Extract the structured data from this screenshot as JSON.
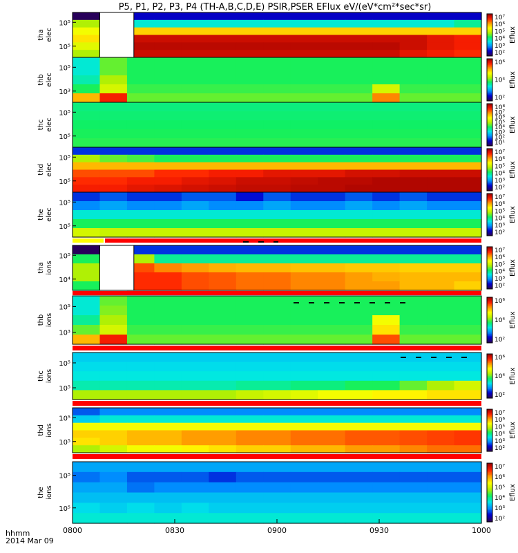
{
  "title": "P5, P1, P2, P3, P4 (TH-A,B,C,D,E) PSIR,PSER EFlux eV/(eV*cm²*sec*sr)",
  "colorbar_label": "Eflux",
  "xaxis": {
    "ticks": [
      "0800",
      "0830",
      "0900",
      "0930",
      "1000"
    ],
    "label": "hhmm",
    "date": "2014 Mar 09"
  },
  "colors": {
    "scale": [
      "#28005a",
      "#0000d0",
      "#0090ff",
      "#00e8e8",
      "#10f060",
      "#b8f000",
      "#ffff00",
      "#ffa000",
      "#ff2000",
      "#a00000"
    ],
    "flag_red": "#ff0000",
    "flag_black": "#000000",
    "gap": "#ffffff"
  },
  "chart_data": {
    "type": "heatmap",
    "time_range": [
      "0800",
      "1000"
    ],
    "value_scale": "log",
    "panels": [
      {
        "label": [
          "tha",
          "elec"
        ],
        "yticks": [
          "10⁵",
          "10⁵"
        ],
        "cbar_ticks": [
          "10⁷",
          "10⁶",
          "10⁵",
          "10⁴",
          "10³",
          "10²"
        ],
        "gap_range": [
          "0808",
          "0818"
        ],
        "rows": [
          [
            0.0,
            null,
            0.1,
            0.1,
            0.1,
            0.1,
            0.1,
            0.1,
            0.1,
            0.1,
            0.1,
            0.1,
            0.1,
            0.1,
            0.1
          ],
          [
            0.55,
            null,
            0.35,
            0.35,
            0.35,
            0.35,
            0.35,
            0.35,
            0.35,
            0.35,
            0.35,
            0.35,
            0.35,
            0.35,
            0.4
          ],
          [
            0.65,
            null,
            0.72,
            0.72,
            0.72,
            0.72,
            0.72,
            0.72,
            0.72,
            0.72,
            0.72,
            0.72,
            0.72,
            0.72,
            0.72
          ],
          [
            0.7,
            null,
            0.95,
            0.95,
            0.95,
            0.95,
            0.95,
            0.95,
            0.95,
            0.95,
            0.95,
            0.95,
            0.95,
            0.92,
            0.9
          ],
          [
            0.62,
            null,
            0.97,
            0.97,
            0.97,
            0.97,
            0.97,
            0.97,
            0.97,
            0.97,
            0.97,
            0.97,
            0.95,
            0.92,
            0.9
          ],
          [
            0.55,
            null,
            0.95,
            0.95,
            0.95,
            0.95,
            0.95,
            0.95,
            0.95,
            0.95,
            0.95,
            0.95,
            0.92,
            0.9,
            0.88
          ]
        ]
      },
      {
        "label": [
          "thb",
          "elec"
        ],
        "yticks": [
          "10⁵",
          "10³"
        ],
        "cbar_ticks": [
          "10⁶",
          "10⁴",
          "10²"
        ],
        "rows": [
          [
            0.35,
            0.5,
            0.45,
            0.45,
            0.45,
            0.45,
            0.45,
            0.45,
            0.45,
            0.45,
            0.45,
            0.45,
            0.45,
            0.45,
            0.45
          ],
          [
            0.35,
            0.5,
            0.45,
            0.45,
            0.45,
            0.45,
            0.45,
            0.45,
            0.45,
            0.45,
            0.45,
            0.45,
            0.45,
            0.45,
            0.45
          ],
          [
            0.38,
            0.55,
            0.45,
            0.45,
            0.45,
            0.45,
            0.45,
            0.45,
            0.45,
            0.45,
            0.45,
            0.45,
            0.45,
            0.45,
            0.45
          ],
          [
            0.45,
            0.6,
            0.47,
            0.47,
            0.47,
            0.47,
            0.47,
            0.47,
            0.47,
            0.47,
            0.47,
            0.6,
            0.47,
            0.47,
            0.47
          ],
          [
            0.75,
            0.9,
            0.5,
            0.5,
            0.5,
            0.5,
            0.5,
            0.5,
            0.5,
            0.5,
            0.5,
            0.8,
            0.5,
            0.5,
            0.5
          ]
        ]
      },
      {
        "label": [
          "thc",
          "elec"
        ],
        "yticks": [
          "10⁵",
          "10⁵"
        ],
        "cbar_ticks": [
          "10⁸",
          "10⁷",
          "10⁶",
          "10⁵",
          "10⁴",
          "10³",
          "10²",
          "10¹"
        ],
        "rows": [
          [
            0.42,
            0.42,
            0.42,
            0.42,
            0.42,
            0.42,
            0.42,
            0.42,
            0.42,
            0.42,
            0.42,
            0.42,
            0.42,
            0.42,
            0.42
          ],
          [
            0.43,
            0.43,
            0.43,
            0.43,
            0.43,
            0.43,
            0.43,
            0.43,
            0.43,
            0.43,
            0.43,
            0.43,
            0.43,
            0.43,
            0.43
          ],
          [
            0.44,
            0.44,
            0.44,
            0.44,
            0.44,
            0.44,
            0.44,
            0.44,
            0.44,
            0.44,
            0.44,
            0.44,
            0.44,
            0.44,
            0.44
          ],
          [
            0.45,
            0.45,
            0.45,
            0.45,
            0.45,
            0.45,
            0.45,
            0.45,
            0.45,
            0.45,
            0.45,
            0.45,
            0.45,
            0.45,
            0.45
          ],
          [
            0.46,
            0.46,
            0.46,
            0.46,
            0.46,
            0.46,
            0.46,
            0.46,
            0.46,
            0.46,
            0.46,
            0.46,
            0.46,
            0.46,
            0.46
          ]
        ]
      },
      {
        "label": [
          "thd",
          "elec"
        ],
        "yticks": [
          "10⁵",
          "10⁵"
        ],
        "cbar_ticks": [
          "10⁷",
          "10⁶",
          "10⁵",
          "10⁴",
          "10³",
          "10²"
        ],
        "rows": [
          [
            0.15,
            0.15,
            0.15,
            0.15,
            0.15,
            0.15,
            0.15,
            0.15,
            0.15,
            0.15,
            0.15,
            0.15,
            0.15,
            0.15,
            0.15
          ],
          [
            0.55,
            0.5,
            0.48,
            0.45,
            0.45,
            0.45,
            0.45,
            0.45,
            0.45,
            0.45,
            0.45,
            0.45,
            0.45,
            0.45,
            0.45
          ],
          [
            0.75,
            0.75,
            0.75,
            0.75,
            0.75,
            0.75,
            0.75,
            0.75,
            0.75,
            0.75,
            0.75,
            0.75,
            0.75,
            0.75,
            0.75
          ],
          [
            0.85,
            0.85,
            0.85,
            0.88,
            0.88,
            0.9,
            0.9,
            0.92,
            0.92,
            0.92,
            0.94,
            0.94,
            0.95,
            0.95,
            0.95
          ],
          [
            0.88,
            0.88,
            0.9,
            0.9,
            0.92,
            0.93,
            0.95,
            0.95,
            0.96,
            0.97,
            0.97,
            0.98,
            0.98,
            0.98,
            0.98
          ],
          [
            0.9,
            0.9,
            0.92,
            0.93,
            0.94,
            0.95,
            0.96,
            0.96,
            0.97,
            0.97,
            0.98,
            0.98,
            0.98,
            0.98,
            0.98
          ]
        ]
      },
      {
        "label": [
          "the",
          "elec"
        ],
        "yticks": [
          "10⁵",
          "10⁵"
        ],
        "cbar_ticks": [
          "10⁷",
          "10⁶",
          "10⁵",
          "10⁴",
          "10³",
          "10²"
        ],
        "rows": [
          [
            0.15,
            0.18,
            0.15,
            0.15,
            0.18,
            0.18,
            0.12,
            0.18,
            0.15,
            0.15,
            0.18,
            0.15,
            0.18,
            0.15,
            0.15
          ],
          [
            0.22,
            0.25,
            0.22,
            0.22,
            0.25,
            0.22,
            0.22,
            0.25,
            0.22,
            0.22,
            0.25,
            0.22,
            0.25,
            0.22,
            0.22
          ],
          [
            0.35,
            0.35,
            0.35,
            0.35,
            0.35,
            0.35,
            0.35,
            0.35,
            0.35,
            0.35,
            0.35,
            0.35,
            0.35,
            0.35,
            0.35
          ],
          [
            0.45,
            0.45,
            0.45,
            0.45,
            0.45,
            0.45,
            0.45,
            0.45,
            0.45,
            0.45,
            0.45,
            0.45,
            0.45,
            0.45,
            0.45
          ],
          [
            0.6,
            0.58,
            0.58,
            0.58,
            0.58,
            0.58,
            0.58,
            0.58,
            0.58,
            0.58,
            0.58,
            0.58,
            0.58,
            0.58,
            0.58
          ]
        ]
      },
      {
        "label": [
          "tha",
          "ions"
        ],
        "yticks": [
          "10⁵",
          "10⁴"
        ],
        "cbar_ticks": [
          "10⁷",
          "10⁶",
          "10⁵",
          "10⁴",
          "10³",
          "10²"
        ],
        "gap_range": [
          "0808",
          "0818"
        ],
        "rows": [
          [
            0.0,
            null,
            0.15,
            0.15,
            0.15,
            0.15,
            0.15,
            0.15,
            0.15,
            0.15,
            0.15,
            0.15,
            0.15,
            0.15,
            0.15
          ],
          [
            0.45,
            null,
            0.55,
            0.4,
            0.4,
            0.4,
            0.4,
            0.4,
            0.4,
            0.4,
            0.4,
            0.4,
            0.4,
            0.4,
            0.4
          ],
          [
            0.55,
            null,
            0.85,
            0.8,
            0.78,
            0.76,
            0.75,
            0.75,
            0.74,
            0.74,
            0.73,
            0.73,
            0.72,
            0.72,
            0.72
          ],
          [
            0.55,
            null,
            0.88,
            0.88,
            0.85,
            0.84,
            0.82,
            0.82,
            0.8,
            0.8,
            0.78,
            0.76,
            0.75,
            0.75,
            0.75
          ],
          [
            0.45,
            null,
            0.88,
            0.88,
            0.85,
            0.84,
            0.82,
            0.82,
            0.8,
            0.8,
            0.78,
            0.78,
            0.75,
            0.75,
            0.72
          ]
        ]
      },
      {
        "label": [
          "thb",
          "ions"
        ],
        "yticks": [
          "10⁵",
          "10³"
        ],
        "cbar_ticks": [
          "10⁶",
          "10⁴",
          "10²"
        ],
        "rows": [
          [
            0.35,
            0.5,
            0.45,
            0.45,
            0.45,
            0.45,
            0.45,
            0.45,
            0.45,
            0.45,
            0.45,
            0.45,
            0.45,
            0.45,
            0.45
          ],
          [
            0.35,
            0.52,
            0.45,
            0.45,
            0.45,
            0.45,
            0.45,
            0.45,
            0.45,
            0.45,
            0.45,
            0.45,
            0.45,
            0.45,
            0.45
          ],
          [
            0.4,
            0.55,
            0.45,
            0.45,
            0.45,
            0.45,
            0.45,
            0.45,
            0.45,
            0.45,
            0.45,
            0.65,
            0.45,
            0.45,
            0.45
          ],
          [
            0.5,
            0.6,
            0.47,
            0.47,
            0.47,
            0.47,
            0.47,
            0.47,
            0.47,
            0.47,
            0.47,
            0.7,
            0.47,
            0.47,
            0.47
          ],
          [
            0.75,
            0.9,
            0.5,
            0.5,
            0.5,
            0.5,
            0.5,
            0.5,
            0.5,
            0.5,
            0.5,
            0.85,
            0.5,
            0.5,
            0.5
          ]
        ]
      },
      {
        "label": [
          "thc",
          "ions"
        ],
        "yticks": [
          "10⁵",
          "10⁵"
        ],
        "cbar_ticks": [
          "10⁶",
          "10⁴",
          "10²"
        ],
        "rows": [
          [
            0.3,
            0.3,
            0.3,
            0.3,
            0.3,
            0.3,
            0.3,
            0.3,
            0.3,
            0.3,
            0.3,
            0.3,
            0.3,
            0.3,
            0.3
          ],
          [
            0.32,
            0.32,
            0.32,
            0.32,
            0.32,
            0.32,
            0.32,
            0.32,
            0.32,
            0.32,
            0.32,
            0.32,
            0.32,
            0.32,
            0.32
          ],
          [
            0.34,
            0.34,
            0.34,
            0.34,
            0.34,
            0.34,
            0.34,
            0.34,
            0.34,
            0.34,
            0.34,
            0.34,
            0.34,
            0.34,
            0.34
          ],
          [
            0.38,
            0.38,
            0.38,
            0.38,
            0.38,
            0.38,
            0.4,
            0.4,
            0.42,
            0.42,
            0.45,
            0.45,
            0.5,
            0.55,
            0.6
          ],
          [
            0.55,
            0.55,
            0.55,
            0.55,
            0.55,
            0.55,
            0.58,
            0.6,
            0.62,
            0.65,
            0.65,
            0.68,
            0.68,
            0.7,
            0.7
          ]
        ]
      },
      {
        "label": [
          "thd",
          "ions"
        ],
        "yticks": [
          "10⁵",
          "10⁵"
        ],
        "cbar_ticks": [
          "10⁷",
          "10⁶",
          "10⁵",
          "10⁴",
          "10³",
          "10²"
        ],
        "rows": [
          [
            0.18,
            0.22,
            0.22,
            0.22,
            0.22,
            0.22,
            0.22,
            0.22,
            0.22,
            0.22,
            0.22,
            0.22,
            0.22,
            0.22,
            0.22
          ],
          [
            0.3,
            0.35,
            0.35,
            0.35,
            0.35,
            0.35,
            0.35,
            0.35,
            0.35,
            0.35,
            0.35,
            0.35,
            0.35,
            0.35,
            0.35
          ],
          [
            0.65,
            0.65,
            0.65,
            0.65,
            0.65,
            0.65,
            0.65,
            0.65,
            0.65,
            0.65,
            0.65,
            0.65,
            0.65,
            0.65,
            0.65
          ],
          [
            0.72,
            0.72,
            0.75,
            0.75,
            0.78,
            0.78,
            0.8,
            0.8,
            0.82,
            0.82,
            0.84,
            0.84,
            0.85,
            0.86,
            0.87
          ],
          [
            0.7,
            0.72,
            0.75,
            0.75,
            0.78,
            0.78,
            0.8,
            0.8,
            0.82,
            0.82,
            0.84,
            0.84,
            0.85,
            0.86,
            0.87
          ],
          [
            0.55,
            0.6,
            0.65,
            0.65,
            0.68,
            0.7,
            0.72,
            0.72,
            0.75,
            0.75,
            0.78,
            0.78,
            0.8,
            0.82,
            0.82
          ]
        ]
      },
      {
        "label": [
          "the",
          "ions"
        ],
        "yticks": [
          "10⁵",
          "10⁵"
        ],
        "cbar_ticks": [
          "10⁷",
          "10⁶",
          "10⁵",
          "10⁴",
          "10³",
          "10²"
        ],
        "rows": [
          [
            0.25,
            0.25,
            0.25,
            0.25,
            0.25,
            0.25,
            0.25,
            0.25,
            0.25,
            0.25,
            0.25,
            0.25,
            0.25,
            0.25,
            0.25
          ],
          [
            0.2,
            0.22,
            0.18,
            0.18,
            0.18,
            0.15,
            0.18,
            0.18,
            0.18,
            0.18,
            0.18,
            0.18,
            0.18,
            0.18,
            0.18
          ],
          [
            0.25,
            0.25,
            0.2,
            0.22,
            0.22,
            0.22,
            0.22,
            0.22,
            0.22,
            0.22,
            0.22,
            0.22,
            0.22,
            0.22,
            0.22
          ],
          [
            0.28,
            0.28,
            0.28,
            0.28,
            0.28,
            0.28,
            0.28,
            0.28,
            0.28,
            0.28,
            0.28,
            0.28,
            0.28,
            0.28,
            0.28
          ],
          [
            0.32,
            0.3,
            0.32,
            0.3,
            0.32,
            0.3,
            0.3,
            0.3,
            0.3,
            0.3,
            0.3,
            0.3,
            0.3,
            0.3,
            0.3
          ],
          [
            0.35,
            0.35,
            0.35,
            0.35,
            0.35,
            0.35,
            0.35,
            0.35,
            0.35,
            0.35,
            0.35,
            0.35,
            0.35,
            0.35,
            0.35
          ]
        ]
      }
    ]
  }
}
